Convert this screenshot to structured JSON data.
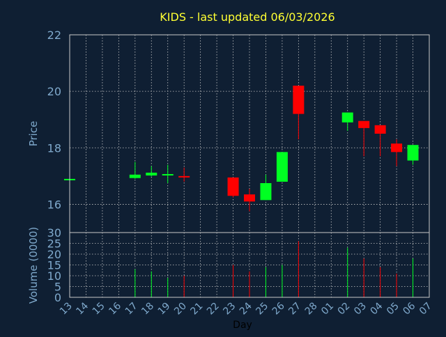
{
  "chart_data": {
    "type": "candlestick",
    "title": "KIDS - last updated 06/03/2026",
    "xlabel": "Day",
    "ylabel_price": "Price",
    "ylabel_volume": "Volume (0000)",
    "grid": true,
    "price_ylim": [
      15,
      22
    ],
    "price_ticks": [
      "16",
      "18",
      "20",
      "22"
    ],
    "volume_ylim": [
      0,
      30
    ],
    "volume_ticks": [
      "0",
      "5",
      "10",
      "15",
      "20",
      "25",
      "30"
    ],
    "x_tick_labels": [
      "13",
      "14",
      "15",
      "16",
      "17",
      "18",
      "19",
      "20",
      "21",
      "22",
      "23",
      "24",
      "25",
      "26",
      "27",
      "28",
      "01",
      "02",
      "03",
      "04",
      "05",
      "06",
      "07"
    ],
    "candles": [
      {
        "i": 0,
        "open": 16.9,
        "close": 16.9,
        "high": 16.9,
        "low": 16.9,
        "volume": 0
      },
      {
        "i": 4,
        "open": 16.93,
        "close": 17.05,
        "high": 17.5,
        "low": 16.9,
        "volume": 13
      },
      {
        "i": 5,
        "open": 17.02,
        "close": 17.12,
        "high": 17.35,
        "low": 16.98,
        "volume": 12
      },
      {
        "i": 6,
        "open": 17.03,
        "close": 17.07,
        "high": 17.4,
        "low": 16.75,
        "volume": 9
      },
      {
        "i": 7,
        "open": 17.0,
        "close": 16.97,
        "high": 17.3,
        "low": 16.8,
        "volume": 10
      },
      {
        "i": 10,
        "open": 16.95,
        "close": 16.3,
        "high": 16.95,
        "low": 16.25,
        "volume": 15
      },
      {
        "i": 11,
        "open": 16.35,
        "close": 16.1,
        "high": 16.55,
        "low": 15.75,
        "volume": 12
      },
      {
        "i": 12,
        "open": 16.15,
        "close": 16.75,
        "high": 17.05,
        "low": 16.15,
        "volume": 14
      },
      {
        "i": 13,
        "open": 16.8,
        "close": 17.85,
        "high": 17.85,
        "low": 16.8,
        "volume": 15
      },
      {
        "i": 14,
        "open": 20.2,
        "close": 19.2,
        "high": 20.2,
        "low": 18.3,
        "volume": 26
      },
      {
        "i": 17,
        "open": 18.9,
        "close": 19.25,
        "high": 19.25,
        "low": 18.6,
        "volume": 23
      },
      {
        "i": 18,
        "open": 18.95,
        "close": 18.7,
        "high": 18.95,
        "low": 17.7,
        "volume": 18
      },
      {
        "i": 19,
        "open": 18.8,
        "close": 18.5,
        "high": 18.8,
        "low": 17.7,
        "volume": 14
      },
      {
        "i": 20,
        "open": 18.15,
        "close": 17.85,
        "high": 18.3,
        "low": 17.35,
        "volume": 11
      },
      {
        "i": 21,
        "open": 17.55,
        "close": 18.1,
        "high": 18.1,
        "low": 17.4,
        "volume": 18
      }
    ],
    "colors": {
      "up": "#00ff22",
      "down": "#ff0000",
      "title": "#ffff33",
      "axis_text": "#7fa9cc",
      "grid": "#c8c8c8",
      "frame": "#c8c8c8",
      "background": "#0f1f33"
    }
  }
}
